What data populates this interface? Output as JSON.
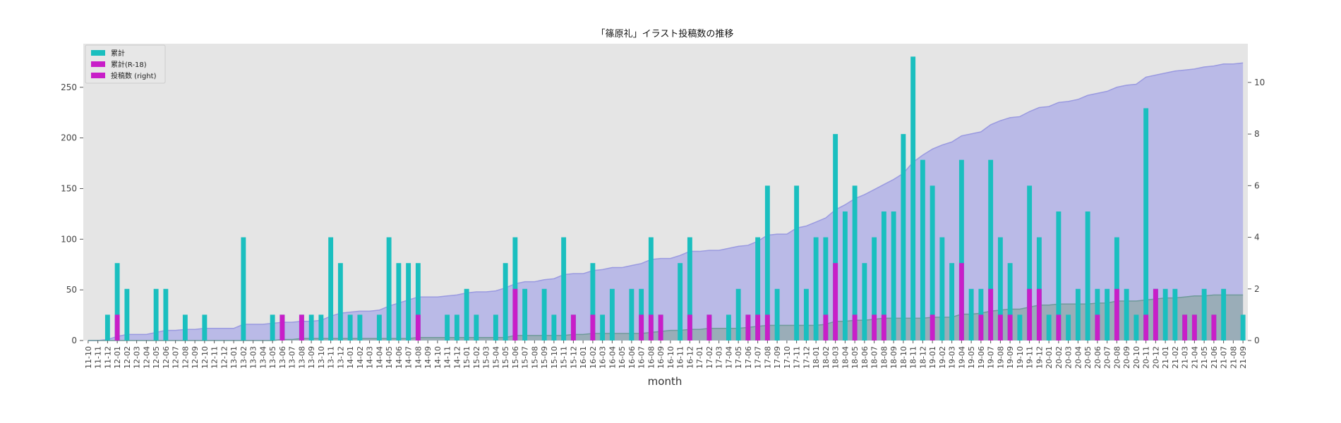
{
  "chart_data": {
    "type": "bar",
    "title": "「篠原礼」イラスト投稿数の推移",
    "xlabel": "month",
    "ylabel": "",
    "ylim": [
      0,
      293
    ],
    "y2lim": [
      0,
      11.5
    ],
    "grid": false,
    "background": "#e5e5e5",
    "legend_position": "top-left",
    "categories": [
      "11-10",
      "11-11",
      "11-12",
      "12-01",
      "12-02",
      "12-03",
      "12-04",
      "12-05",
      "12-06",
      "12-07",
      "12-08",
      "12-09",
      "12-10",
      "12-11",
      "12-12",
      "13-01",
      "13-02",
      "13-03",
      "13-04",
      "13-05",
      "13-06",
      "13-07",
      "13-08",
      "13-09",
      "13-10",
      "13-11",
      "13-12",
      "14-01",
      "14-02",
      "14-03",
      "14-04",
      "14-05",
      "14-06",
      "14-07",
      "14-08",
      "14-09",
      "14-10",
      "14-11",
      "14-12",
      "15-01",
      "15-02",
      "15-03",
      "15-04",
      "15-05",
      "15-06",
      "15-07",
      "15-08",
      "15-09",
      "15-10",
      "15-11",
      "15-12",
      "16-01",
      "16-02",
      "16-03",
      "16-04",
      "16-05",
      "16-06",
      "16-07",
      "16-08",
      "16-09",
      "16-10",
      "16-11",
      "16-12",
      "17-01",
      "17-02",
      "17-03",
      "17-04",
      "17-05",
      "17-06",
      "17-07",
      "17-08",
      "17-09",
      "17-10",
      "17-11",
      "17-12",
      "18-01",
      "18-02",
      "18-03",
      "18-04",
      "18-05",
      "18-06",
      "18-07",
      "18-08",
      "18-09",
      "18-10",
      "18-11",
      "18-12",
      "19-01",
      "19-02",
      "19-03",
      "19-04",
      "19-05",
      "19-06",
      "19-07",
      "19-08",
      "19-09",
      "19-10",
      "19-11",
      "19-12",
      "20-01",
      "20-02",
      "20-03",
      "20-04",
      "20-05",
      "20-06",
      "20-07",
      "20-08",
      "20-09",
      "20-10",
      "20-11",
      "20-12",
      "21-01",
      "21-02",
      "21-03",
      "21-04",
      "21-05",
      "21-06",
      "21-07",
      "21-08",
      "21-09"
    ],
    "series": [
      {
        "name": "累計",
        "kind": "area",
        "axis": "left",
        "color": "#b3b3e8",
        "values": [
          0,
          0,
          1,
          4,
          6,
          6,
          6,
          8,
          10,
          10,
          11,
          11,
          12,
          12,
          12,
          12,
          16,
          16,
          16,
          17,
          18,
          18,
          19,
          19,
          20,
          24,
          27,
          28,
          29,
          29,
          30,
          34,
          37,
          40,
          43,
          43,
          43,
          44,
          45,
          47,
          48,
          48,
          49,
          52,
          56,
          58,
          58,
          60,
          61,
          65,
          66,
          66,
          69,
          70,
          72,
          72,
          74,
          76,
          80,
          81,
          81,
          84,
          88,
          88,
          89,
          89,
          91,
          93,
          94,
          98,
          104,
          105,
          105,
          111,
          113,
          117,
          121,
          129,
          134,
          140,
          144,
          149,
          154,
          159,
          165,
          176,
          183,
          189,
          193,
          196,
          202,
          204,
          206,
          213,
          217,
          220,
          221,
          226,
          230,
          231,
          235,
          236,
          238,
          242,
          244,
          246,
          250,
          252,
          253,
          260,
          262,
          264,
          266,
          267,
          268,
          270,
          271,
          273,
          273,
          274
        ]
      },
      {
        "name": "累計(R-18)",
        "kind": "area",
        "axis": "left",
        "color": "#8fa8a8",
        "values": [
          0,
          0,
          0,
          0,
          0,
          0,
          0,
          0,
          0,
          0,
          0,
          0,
          0,
          0,
          0,
          0,
          0,
          0,
          0,
          0,
          1,
          1,
          2,
          2,
          2,
          2,
          2,
          2,
          2,
          2,
          2,
          2,
          2,
          2,
          3,
          3,
          3,
          3,
          3,
          3,
          3,
          3,
          3,
          3,
          5,
          5,
          5,
          5,
          5,
          5,
          6,
          6,
          7,
          7,
          7,
          7,
          7,
          7,
          8,
          9,
          10,
          10,
          11,
          11,
          12,
          12,
          12,
          12,
          13,
          14,
          15,
          15,
          15,
          15,
          15,
          15,
          16,
          19,
          19,
          20,
          20,
          21,
          22,
          22,
          22,
          22,
          22,
          23,
          23,
          23,
          26,
          26,
          27,
          29,
          30,
          31,
          31,
          33,
          35,
          35,
          36,
          36,
          36,
          36,
          37,
          37,
          39,
          39,
          39,
          40,
          41,
          42,
          42,
          43,
          44,
          44,
          45,
          45,
          45,
          45
        ]
      },
      {
        "name": "投稿数 (right)",
        "kind": "bar",
        "axis": "right",
        "color": "#1abfbf",
        "values": [
          0,
          0,
          1,
          3,
          2,
          0,
          0,
          2,
          2,
          0,
          1,
          0,
          1,
          0,
          0,
          0,
          4,
          0,
          0,
          1,
          1,
          0,
          1,
          1,
          1,
          4,
          3,
          1,
          1,
          0,
          1,
          4,
          3,
          3,
          3,
          0,
          0,
          1,
          1,
          2,
          1,
          0,
          1,
          3,
          4,
          2,
          0,
          2,
          1,
          4,
          1,
          0,
          3,
          1,
          2,
          0,
          2,
          2,
          4,
          1,
          0,
          3,
          4,
          0,
          1,
          0,
          1,
          2,
          1,
          4,
          6,
          2,
          0,
          6,
          2,
          4,
          4,
          8,
          5,
          6,
          3,
          4,
          5,
          5,
          8,
          11,
          7,
          6,
          4,
          3,
          7,
          2,
          2,
          7,
          4,
          3,
          1,
          6,
          4,
          1,
          5,
          1,
          2,
          5,
          2,
          2,
          4,
          2,
          1,
          9,
          2,
          2,
          2,
          1,
          1,
          2,
          1,
          2,
          0,
          1
        ]
      },
      {
        "name": "投稿数 (right)",
        "kind": "bar",
        "axis": "right",
        "color": "#c81ec8",
        "values": [
          0,
          0,
          0,
          1,
          0,
          0,
          0,
          0,
          0,
          0,
          0,
          0,
          0,
          0,
          0,
          0,
          0,
          0,
          0,
          0,
          1,
          0,
          1,
          0,
          0,
          0,
          0,
          0,
          0,
          0,
          0,
          0,
          0,
          0,
          1,
          0,
          0,
          0,
          0,
          0,
          0,
          0,
          0,
          0,
          2,
          0,
          0,
          0,
          0,
          0,
          1,
          0,
          1,
          0,
          0,
          0,
          0,
          1,
          1,
          1,
          0,
          0,
          1,
          0,
          1,
          0,
          0,
          0,
          1,
          1,
          1,
          0,
          0,
          0,
          0,
          0,
          1,
          3,
          0,
          1,
          0,
          1,
          1,
          0,
          0,
          0,
          0,
          1,
          0,
          0,
          3,
          0,
          1,
          2,
          1,
          1,
          0,
          2,
          2,
          0,
          1,
          0,
          0,
          0,
          1,
          0,
          2,
          0,
          0,
          1,
          2,
          0,
          0,
          1,
          1,
          0,
          1,
          0,
          0,
          0
        ]
      }
    ]
  }
}
